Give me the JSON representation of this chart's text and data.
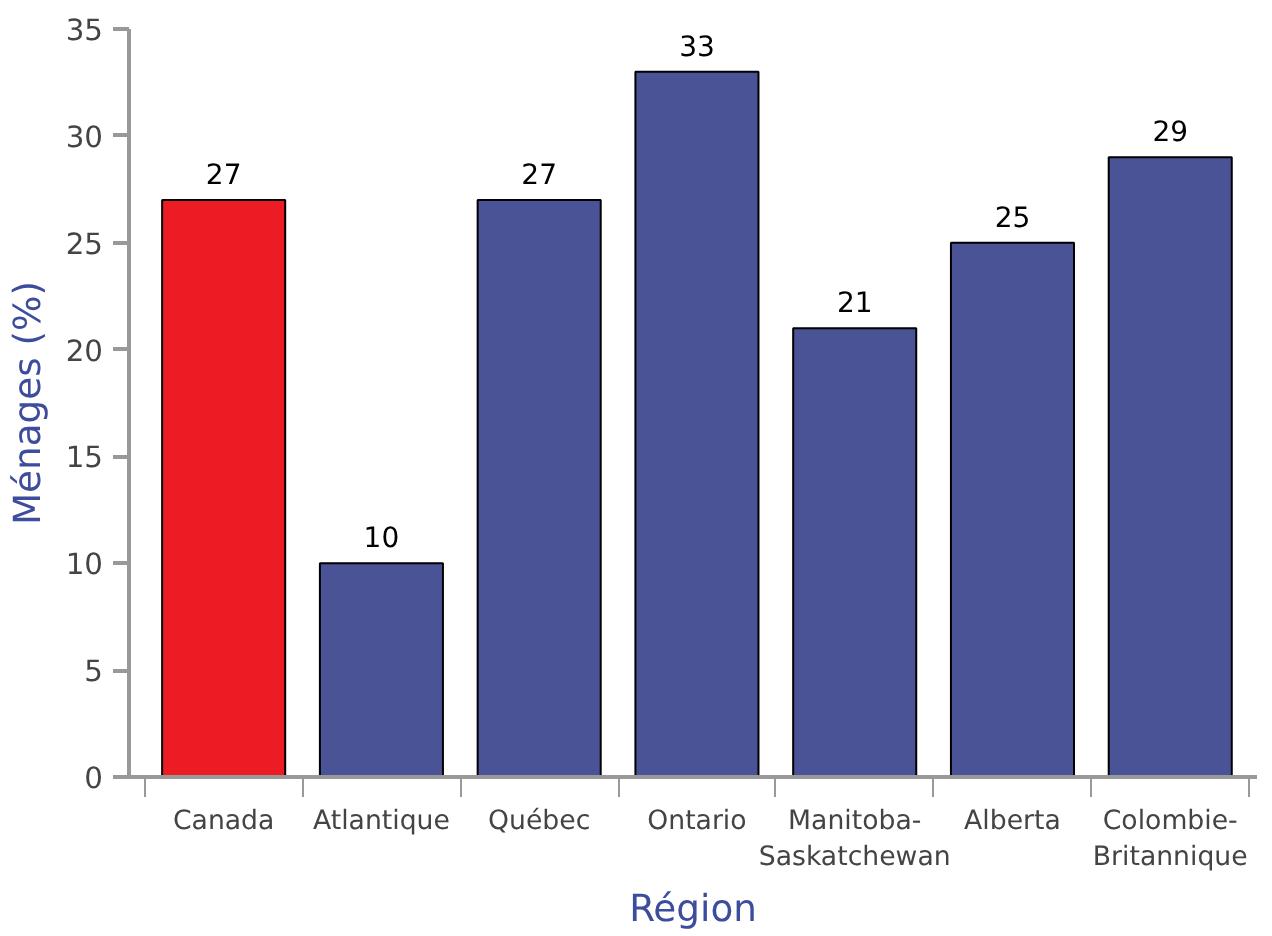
{
  "chart_data": {
    "type": "bar",
    "xlabel": "Région",
    "ylabel": "Ménages (%)",
    "categories": [
      "Canada",
      "Atlantique",
      "Québec",
      "Ontario",
      "Manitoba-Saskatchewan",
      "Alberta",
      "Colombie-Britannique"
    ],
    "values": [
      27,
      10,
      27,
      33,
      21,
      25,
      29
    ],
    "colors": [
      "#ed1c24",
      "#4a5396",
      "#4a5396",
      "#4a5396",
      "#4a5396",
      "#4a5396",
      "#4a5396"
    ],
    "ylim": [
      0,
      35
    ],
    "yticks": [
      0,
      5,
      10,
      15,
      20,
      25,
      30,
      35
    ],
    "data_labels": true,
    "grid": false
  }
}
